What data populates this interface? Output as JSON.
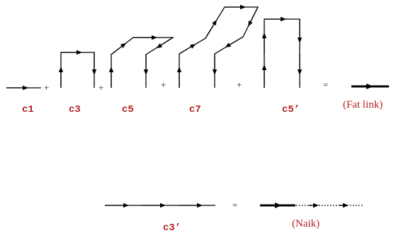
{
  "top_row": {
    "labels": [
      "c1",
      "c3",
      "c5",
      "c7",
      "c5’"
    ],
    "plus": "+",
    "equals": "=",
    "result": "(Fat link)"
  },
  "bottom_row": {
    "label": "c3’",
    "equals": "=",
    "result": "(Naik)"
  }
}
